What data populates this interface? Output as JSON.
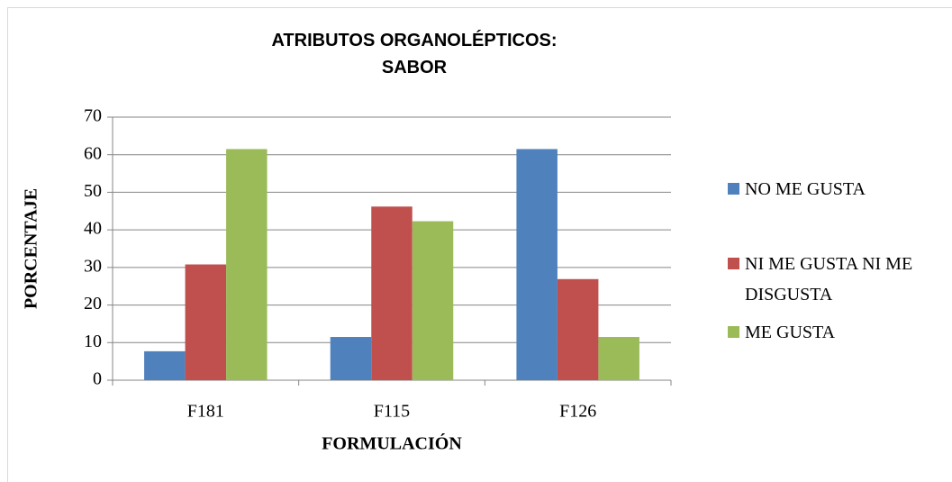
{
  "chart_data": {
    "type": "bar",
    "title": "ATRIBUTOS ORGANOLÉPTICOS: SABOR",
    "x_label": "FORMULACIÓN",
    "y_label": "PORCENTAJE",
    "categories": [
      "F181",
      "F115",
      "F126"
    ],
    "series": [
      {
        "name": "NO ME GUSTA",
        "color": "#4f81bd",
        "values": [
          7.7,
          11.5,
          61.5
        ]
      },
      {
        "name": "NI ME GUSTA NI ME DISGUSTA",
        "color": "#c0504d",
        "values": [
          30.8,
          46.2,
          26.9
        ]
      },
      {
        "name": "ME GUSTA",
        "color": "#9bbb59",
        "values": [
          61.5,
          42.3,
          11.5
        ]
      }
    ],
    "ylim": [
      0,
      70
    ],
    "yticks": [
      0,
      10,
      20,
      30,
      40,
      50,
      60,
      70
    ],
    "grid": true,
    "legend": "right"
  }
}
